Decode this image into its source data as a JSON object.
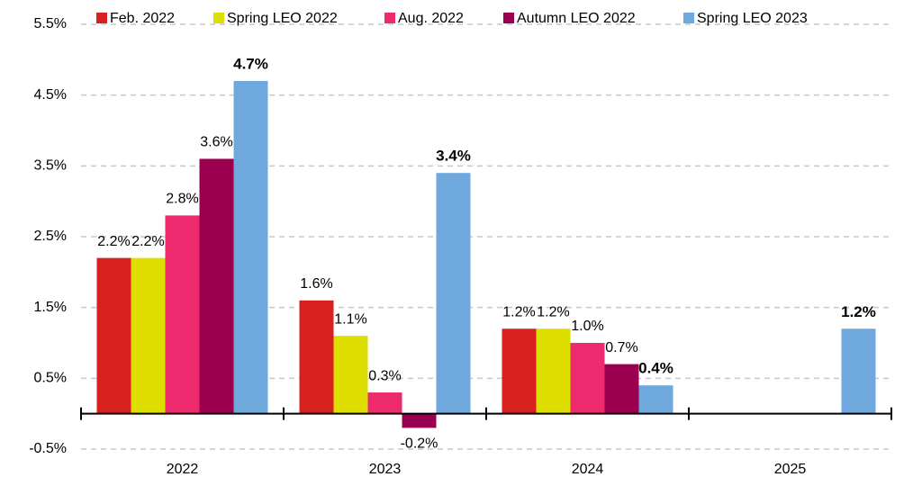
{
  "chart_data": {
    "type": "bar",
    "categories": [
      "2022",
      "2023",
      "2024",
      "2025"
    ],
    "series": [
      {
        "name": "Feb. 2022",
        "color": "#d7201f",
        "values": [
          2.2,
          1.6,
          1.2,
          null
        ],
        "value_labels": [
          "2.2%",
          "1.6%",
          "1.2%",
          null
        ]
      },
      {
        "name": "Spring LEO 2022",
        "color": "#dede00",
        "values": [
          2.2,
          1.1,
          1.2,
          null
        ],
        "value_labels": [
          "2.2%",
          "1.1%",
          "1.2%",
          null
        ]
      },
      {
        "name": "Aug. 2022",
        "color": "#ee2a6e",
        "values": [
          2.8,
          0.3,
          1.0,
          null
        ],
        "value_labels": [
          "2.8%",
          "0.3%",
          "1.0%",
          null
        ]
      },
      {
        "name": "Autumn LEO 2022",
        "color": "#9b0050",
        "values": [
          3.6,
          -0.2,
          0.7,
          null
        ],
        "value_labels": [
          "3.6%",
          "-0.2%",
          "0.7%",
          null
        ]
      },
      {
        "name": "Spring LEO 2023",
        "color": "#6fa8dc",
        "values": [
          4.7,
          3.4,
          0.4,
          1.2
        ],
        "value_labels": [
          "4.7%",
          "3.4%",
          "0.4%",
          "1.2%"
        ]
      }
    ],
    "ylim": [
      -0.5,
      5.5
    ],
    "yticks": [
      {
        "value": -0.5,
        "label": "-0.5%"
      },
      {
        "value": 0.5,
        "label": "0.5%"
      },
      {
        "value": 1.5,
        "label": "1.5%"
      },
      {
        "value": 2.5,
        "label": "2.5%"
      },
      {
        "value": 3.5,
        "label": "3.5%"
      },
      {
        "value": 4.5,
        "label": "4.5%"
      },
      {
        "value": 5.5,
        "label": "5.5%"
      }
    ],
    "grid": true
  }
}
